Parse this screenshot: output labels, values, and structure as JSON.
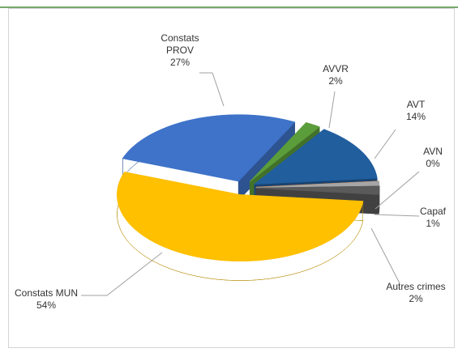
{
  "chart_data": {
    "type": "pie",
    "categories": [
      "Constats PROV",
      "AVVR",
      "AVT",
      "AVN",
      "Capaf",
      "Autres crimes",
      "Constats MUN"
    ],
    "values": [
      27,
      2,
      14,
      0,
      1,
      2,
      54
    ],
    "value_labels": [
      "27%",
      "2%",
      "14%",
      "0%",
      "1%",
      "2%",
      "54%"
    ],
    "colors": [
      "#3f73c9",
      "#5b9d3a",
      "#215e9e",
      "#e0701e",
      "#a6a6a6",
      "#5a5a5a",
      "#ffc000"
    ]
  }
}
